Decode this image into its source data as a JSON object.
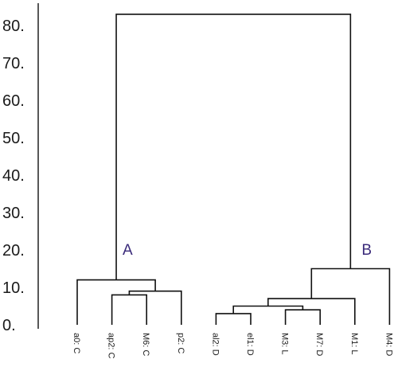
{
  "chart_data": {
    "type": "dendrogram",
    "y_ticks": [
      "0.",
      "10.",
      "20.",
      "30.",
      "40.",
      "50.",
      "60.",
      "70.",
      "80."
    ],
    "ylim": [
      0,
      85
    ],
    "leaves": [
      "a0: C",
      "ap2: C",
      "M6: C",
      "p2: C",
      "al2: D",
      "el1: D",
      "M3: L",
      "M7: D",
      "M1: L",
      "M4: D"
    ],
    "merges": [
      {
        "left": "ap2: C",
        "right": "M6: C",
        "height": 8
      },
      {
        "left": "al2: D",
        "right": "el1: D",
        "height": 3
      },
      {
        "left": "M3: L",
        "right": "M7: D",
        "height": 4
      },
      {
        "left": "al2+el1",
        "right": "M3+M7",
        "height": 5
      },
      {
        "left": "ap2+M6",
        "right": "p2: C",
        "height": 9
      },
      {
        "left": "a0: C",
        "right": "ap2+M6+p2",
        "height": 12
      },
      {
        "left": "al2+el1+M3+M7",
        "right": "M1: L",
        "height": 7
      },
      {
        "left": "al2+el1+M3+M7+M1",
        "right": "M4: D",
        "height": 15
      },
      {
        "left": "A",
        "right": "B",
        "height": 83
      }
    ],
    "clusters": [
      {
        "label": "A",
        "height": 20
      },
      {
        "label": "B",
        "height": 20
      }
    ]
  }
}
